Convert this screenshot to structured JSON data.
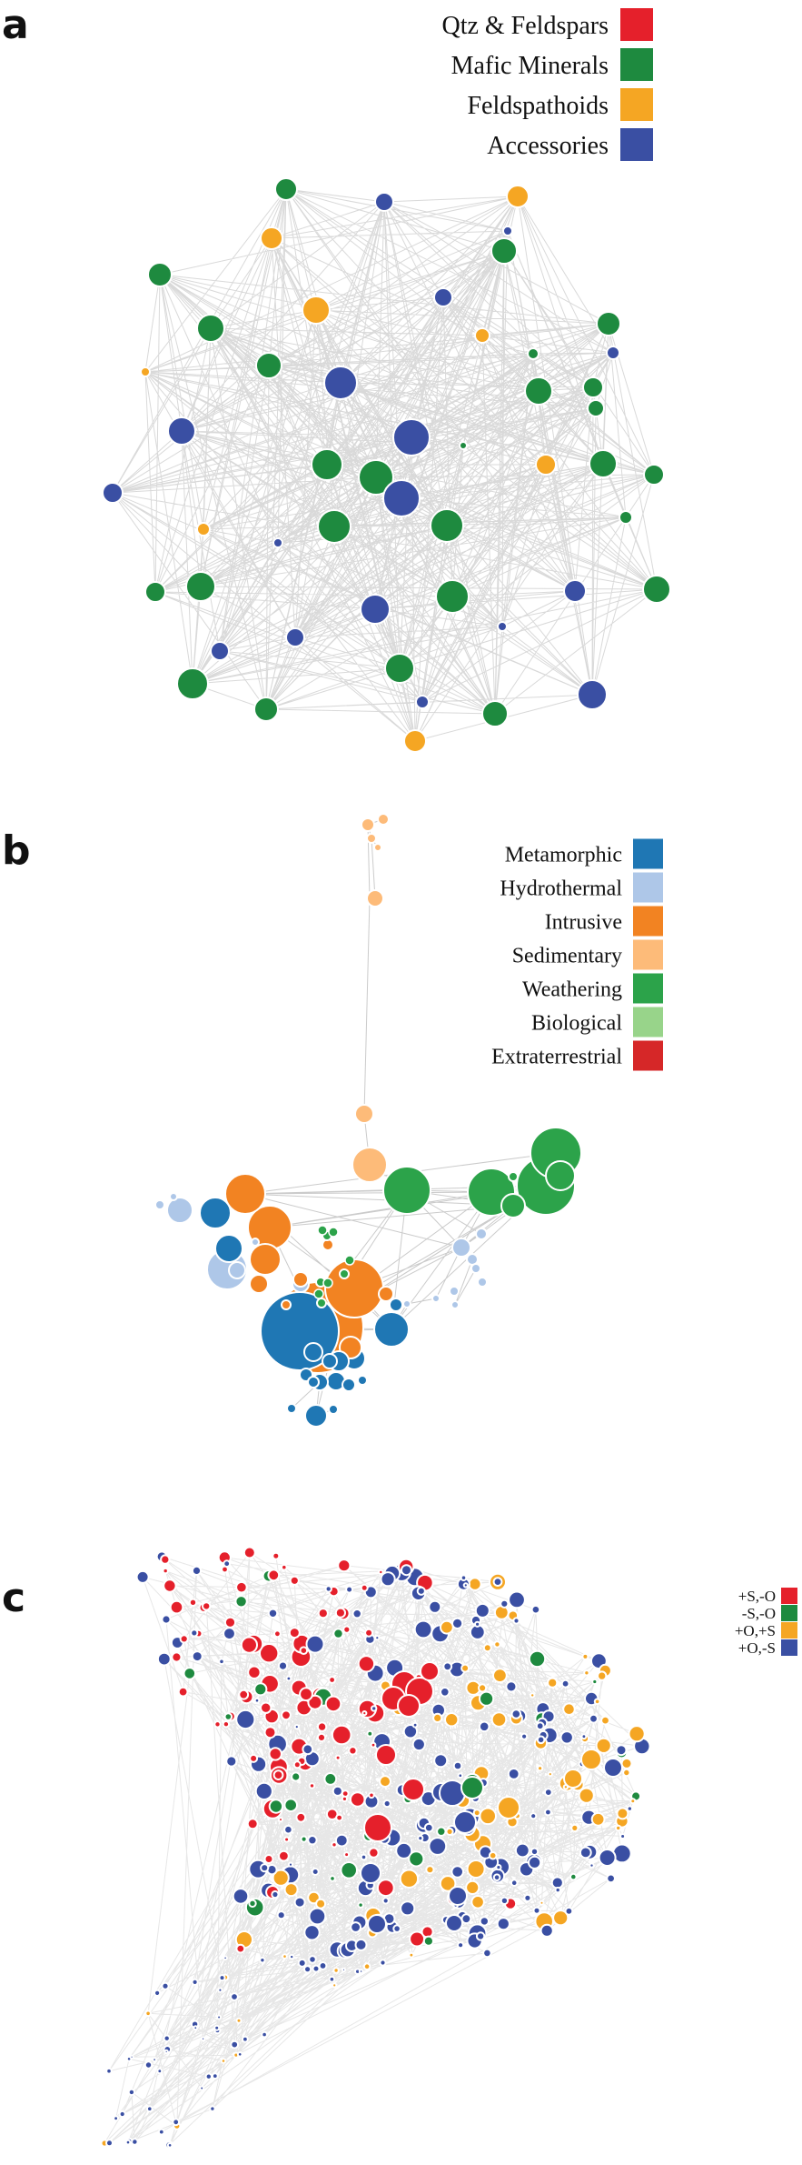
{
  "panels": [
    {
      "id": "a",
      "letter": "a",
      "legend": [
        {
          "label": "Qtz & Feldspars",
          "color": "#e5202b"
        },
        {
          "label": "Mafic Minerals",
          "color": "#1e8a3f"
        },
        {
          "label": "Feldspathoids",
          "color": "#f5a623"
        },
        {
          "label": "Accessories",
          "color": "#3a4fa3"
        }
      ]
    },
    {
      "id": "b",
      "letter": "b",
      "legend": [
        {
          "label": "Metamorphic",
          "color": "#1f77b4"
        },
        {
          "label": "Hydrothermal",
          "color": "#aec7e8"
        },
        {
          "label": "Intrusive",
          "color": "#f28322"
        },
        {
          "label": "Sedimentary",
          "color": "#fdbb79"
        },
        {
          "label": "Weathering",
          "color": "#2ca34a"
        },
        {
          "label": "Biological",
          "color": "#98d48a"
        },
        {
          "label": "Extraterrestrial",
          "color": "#d62728"
        }
      ]
    },
    {
      "id": "c",
      "letter": "c",
      "legend": [
        {
          "label": "+S,-O",
          "color": "#e5202b"
        },
        {
          "label": "-S,-O",
          "color": "#1e8a3f"
        },
        {
          "label": "+O,+S",
          "color": "#f5a623"
        },
        {
          "label": "+O,-S",
          "color": "#3a4fa3"
        }
      ]
    }
  ]
}
